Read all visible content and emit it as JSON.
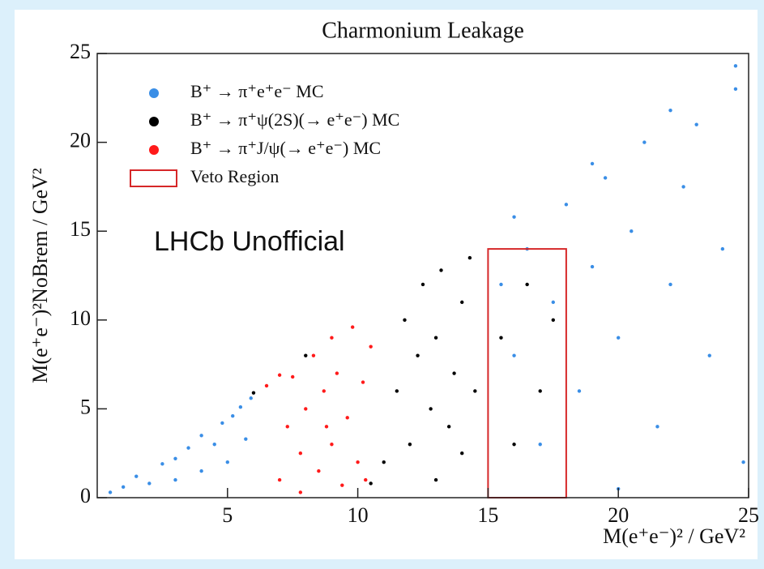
{
  "chart_data": {
    "type": "scatter",
    "title": "Charmonium Leakage",
    "xlabel": "M(e⁺e⁻)² / GeV²",
    "ylabel": "M(e⁺e⁻)²NoBrem / GeV²",
    "annotation": "LHCb Unofficial",
    "xlim": [
      0,
      25
    ],
    "ylim": [
      0,
      25
    ],
    "xticks": [
      5,
      10,
      15,
      20,
      25
    ],
    "yticks": [
      0,
      5,
      10,
      15,
      20,
      25
    ],
    "legend": "upper left",
    "series": [
      {
        "name": "B⁺ → π⁺e⁺e⁻ MC",
        "color": "#3a8ee6",
        "x": [
          0.5,
          1,
          1.5,
          2,
          2.5,
          3,
          3,
          3.5,
          4,
          4,
          4.5,
          4.8,
          5,
          5.2,
          5.5,
          5.7,
          5.9,
          15.5,
          16,
          16.5,
          17,
          17.5,
          18,
          18.5,
          19,
          19.5,
          20,
          20.5,
          21,
          21.5,
          22,
          22.5,
          23,
          23.5,
          24,
          24.5,
          24.8,
          20,
          16,
          19,
          22,
          24.5
        ],
        "y": [
          0.3,
          0.6,
          1.2,
          0.8,
          1.9,
          2.2,
          1,
          2.8,
          3.5,
          1.5,
          3,
          4.2,
          2,
          4.6,
          5.1,
          3.3,
          5.6,
          12,
          8,
          14,
          3,
          11,
          16.5,
          6,
          13,
          18,
          9,
          15,
          20,
          4,
          12,
          17.5,
          21,
          8,
          14,
          23,
          2,
          0.5,
          15.8,
          18.8,
          21.8,
          24.3
        ]
      },
      {
        "name": "B⁺ → π⁺ψ(2S)(→ e⁺e⁻) MC",
        "color": "#000000",
        "x": [
          11,
          11.5,
          11.8,
          12,
          12.3,
          12.5,
          12.8,
          13,
          13,
          13.2,
          13.5,
          13.7,
          14,
          14,
          14.3,
          14.5,
          15.5,
          16,
          16.5,
          17,
          17.5,
          10.5,
          8,
          6
        ],
        "y": [
          2,
          6,
          10,
          3,
          8,
          12,
          5,
          1,
          9,
          12.8,
          4,
          7,
          11,
          2.5,
          13.5,
          6,
          9,
          3,
          12,
          6,
          10,
          0.8,
          8,
          5.9
        ]
      },
      {
        "name": "B⁺ → π⁺J/ψ(→ e⁺e⁻) MC",
        "color": "#ff1a1a",
        "x": [
          7,
          7.3,
          7.5,
          7.8,
          8,
          8.3,
          8.5,
          8.7,
          9,
          9,
          9.2,
          9.4,
          9.6,
          9.8,
          10,
          10.2,
          10.5,
          6.5,
          7.8,
          8.8,
          10.3,
          7
        ],
        "y": [
          1,
          4,
          6.8,
          2.5,
          5,
          8,
          1.5,
          6,
          3,
          9,
          7,
          0.7,
          4.5,
          9.6,
          2,
          6.5,
          8.5,
          6.3,
          0.3,
          4,
          1,
          6.9
        ]
      }
    ],
    "rectangles": [
      {
        "name": "Veto Region",
        "color": "#d62728",
        "x": [
          15,
          18
        ],
        "y": [
          0,
          14
        ]
      }
    ]
  }
}
